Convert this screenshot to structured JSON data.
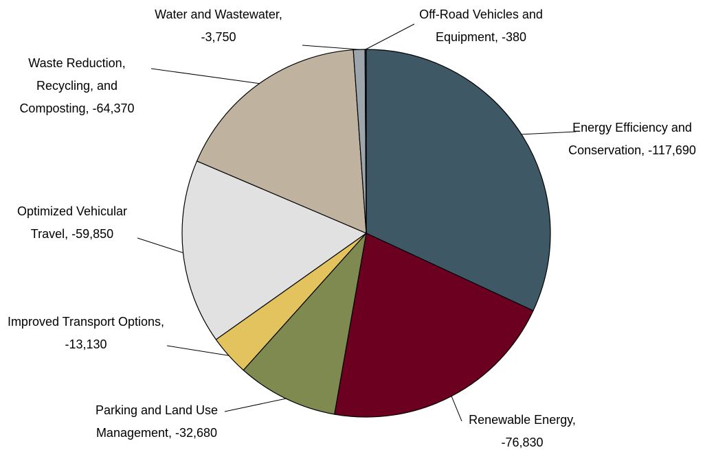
{
  "chart_data": {
    "type": "pie",
    "categories": [
      "Energy Efficiency and Conservation",
      "Renewable Energy",
      "Parking and Land Use Management",
      "Improved Transport Options",
      "Optimized Vehicular Travel",
      "Waste Reduction, Recycling, and Composting",
      "Water and Wastewater",
      "Off-Road Vehicles and Equipment"
    ],
    "values": [
      -117690,
      -76830,
      -32680,
      -13130,
      -59850,
      -64370,
      -3750,
      -380
    ],
    "labels": [
      "Energy Efficiency and Conservation, -117,690",
      "Renewable Energy, -76,830",
      "Parking and Land Use Management, -32,680",
      "Improved Transport Options, -13,130",
      "Optimized Vehicular Travel, -59,850",
      "Waste Reduction, Recycling, and Composting, -64,370",
      "Water and Wastewater, -3,750",
      "Off-Road Vehicles and Equipment, -380"
    ],
    "colors": [
      "#3f5866",
      "#6b0020",
      "#7e8a4f",
      "#e2c35e",
      "#e1e1e1",
      "#bfb3a0",
      "#9ea6ad",
      "#3a4a55"
    ]
  }
}
